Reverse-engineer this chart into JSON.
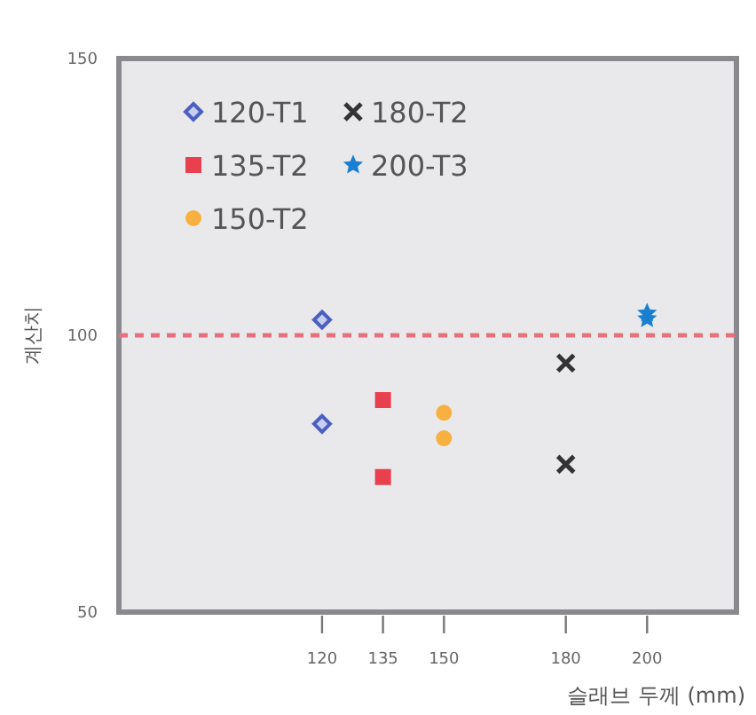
{
  "chart_data": {
    "type": "scatter",
    "xlabel": "슬래브 두께 (mm)",
    "ylabel": "계산치",
    "xlim": [
      70,
      222
    ],
    "ylim": [
      50,
      150
    ],
    "xticks": [
      120,
      135,
      150,
      180,
      200
    ],
    "yticks": [
      50,
      100,
      150
    ],
    "grid": false,
    "legend": "top left",
    "ref_lines": [
      {
        "axis": "y",
        "value": 100,
        "color": "#e8707a",
        "line_style": "dashed"
      }
    ],
    "series": [
      {
        "name": "120-T1",
        "color": "#4a5fc0",
        "marker": "diamond",
        "x": [
          120,
          120
        ],
        "values": [
          102.8,
          84
        ]
      },
      {
        "name": "135-T2",
        "color": "#e8404f",
        "marker": "square",
        "x": [
          135,
          135
        ],
        "values": [
          88.3,
          74.4
        ]
      },
      {
        "name": "150-T2",
        "color": "#f8b040",
        "marker": "circle",
        "x": [
          150,
          150
        ],
        "values": [
          86,
          81.4
        ]
      },
      {
        "name": "180-T2",
        "color": "#333333",
        "marker": "cross",
        "x": [
          180,
          180
        ],
        "values": [
          95,
          76.7
        ]
      },
      {
        "name": "200-T3",
        "color": "#1a7fd0",
        "marker": "star",
        "x": [
          200,
          200
        ],
        "values": [
          104,
          103
        ]
      }
    ]
  }
}
